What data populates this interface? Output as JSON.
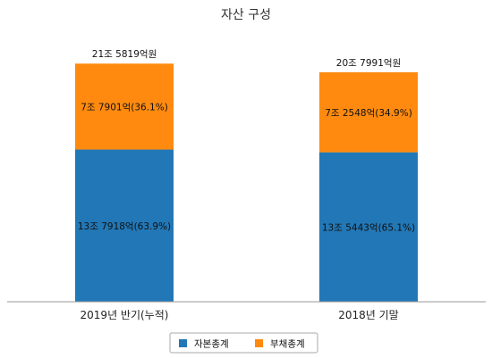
{
  "chart_data": {
    "type": "bar",
    "stacked": true,
    "title": "자산 구성",
    "categories": [
      "2019년 반기(누적)",
      "2018년 기말"
    ],
    "series": [
      {
        "name": "자본총계",
        "color": "#2277b6",
        "values": [
          13.7918,
          13.5443
        ],
        "labels": [
          "13조 7918억(63.9%)",
          "13조 5443억(65.1%)"
        ]
      },
      {
        "name": "부채총계",
        "color": "#ff8a0f",
        "values": [
          7.7901,
          7.2548
        ],
        "labels": [
          "7조 7901억(36.1%)",
          "7조 2548억(34.9%)"
        ]
      }
    ],
    "totals": [
      "21조 5819억원",
      "20조 7991억원"
    ],
    "legend_position": "bottom",
    "grid": false
  }
}
